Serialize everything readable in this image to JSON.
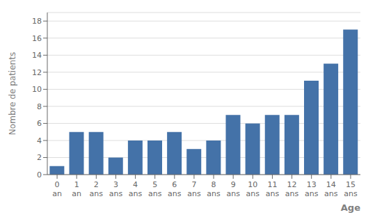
{
  "chart_data": {
    "type": "bar",
    "categories": [
      "0\nan",
      "1\nan",
      "2\nans",
      "3\nans",
      "4\nans",
      "5\nans",
      "6\nans",
      "7\nans",
      "8\nans",
      "9\nans",
      "10\nans",
      "11\nans",
      "12\nans",
      "13\nans",
      "14\nans",
      "15\nans"
    ],
    "values": [
      1,
      5,
      5,
      2,
      4,
      4,
      5,
      3,
      4,
      7,
      6,
      7,
      7,
      11,
      13,
      17
    ],
    "color": "#4472a8",
    "xlabel": "Age",
    "ylabel": "Nombre de patients",
    "ylim": [
      0,
      19
    ],
    "yticks": [
      0,
      2,
      4,
      6,
      8,
      10,
      12,
      14,
      16,
      18
    ],
    "grid": true
  }
}
